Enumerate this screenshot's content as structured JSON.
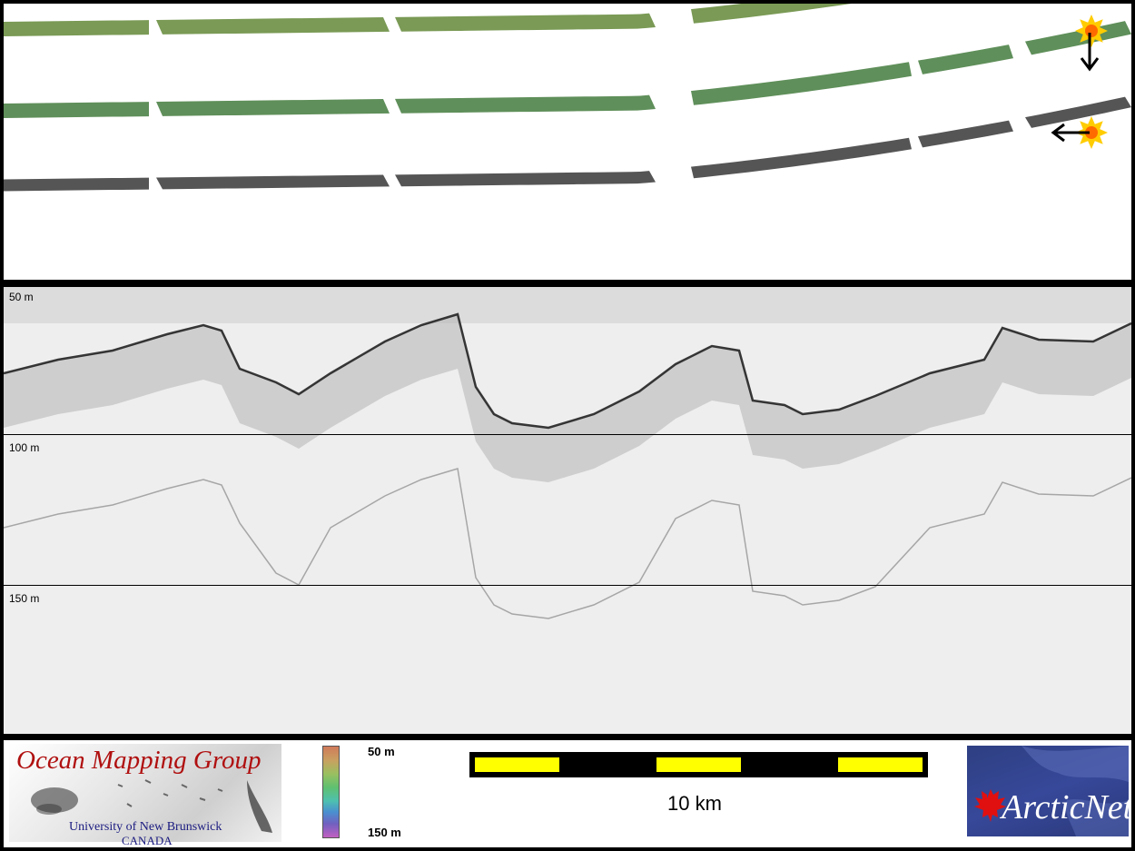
{
  "profile": {
    "depth_labels": [
      "50 m",
      "100 m",
      "150 m"
    ]
  },
  "legend": {
    "colorbar_top": "50 m",
    "colorbar_bottom": "150 m",
    "colorbar_colors": [
      "#d07a5a",
      "#c9a060",
      "#9ac060",
      "#5fc070",
      "#4ec0b0",
      "#4a90d0",
      "#7060c0",
      "#c060c0"
    ],
    "scale_label": "10 km",
    "scale_colors": {
      "dark": "#000000",
      "light": "#ffff00"
    }
  },
  "logos": {
    "omg_title": "Ocean Mapping Group",
    "omg_university": "University of New Brunswick",
    "omg_country": "CANADA",
    "arcticnet_text": "ArcticNet"
  },
  "map": {
    "strip_colors": {
      "bathy": "#7a9a55",
      "bathy_alt": "#5f8f5a",
      "backscatter": "#555555"
    },
    "illumination_icons": [
      "sun-icon-down-arrow",
      "sun-icon-left-arrow"
    ]
  }
}
